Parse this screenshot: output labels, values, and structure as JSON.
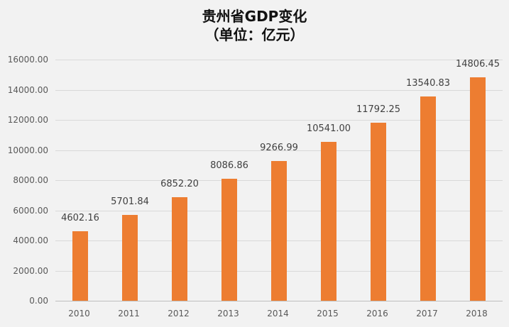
{
  "title": {
    "line1": "贵州省GDP变化",
    "line2": "（单位：亿元）"
  },
  "colors": {
    "bar": "#ed7d31",
    "background": "#f2f2f2",
    "gridline": "#d9d9d9"
  },
  "y_ticks": [
    "0.00",
    "2000.00",
    "4000.00",
    "6000.00",
    "8000.00",
    "10000.00",
    "12000.00",
    "14000.00",
    "16000.00"
  ],
  "x_ticks": [
    "2010",
    "2011",
    "2012",
    "2013",
    "2014",
    "2015",
    "2016",
    "2017",
    "2018"
  ],
  "data_labels": [
    "4602.16",
    "5701.84",
    "6852.20",
    "8086.86",
    "9266.99",
    "10541.00",
    "11792.25",
    "13540.83",
    "14806.45"
  ],
  "chart_data": {
    "type": "bar",
    "title": "贵州省GDP变化（单位：亿元）",
    "categories": [
      "2010",
      "2011",
      "2012",
      "2013",
      "2014",
      "2015",
      "2016",
      "2017",
      "2018"
    ],
    "values": [
      4602.16,
      5701.84,
      6852.2,
      8086.86,
      9266.99,
      10541.0,
      11792.25,
      13540.83,
      14806.45
    ],
    "xlabel": "",
    "ylabel": "",
    "ylim": [
      0,
      16000
    ],
    "y_tick_step": 2000,
    "grid": true,
    "legend": null,
    "data_labels": true
  }
}
